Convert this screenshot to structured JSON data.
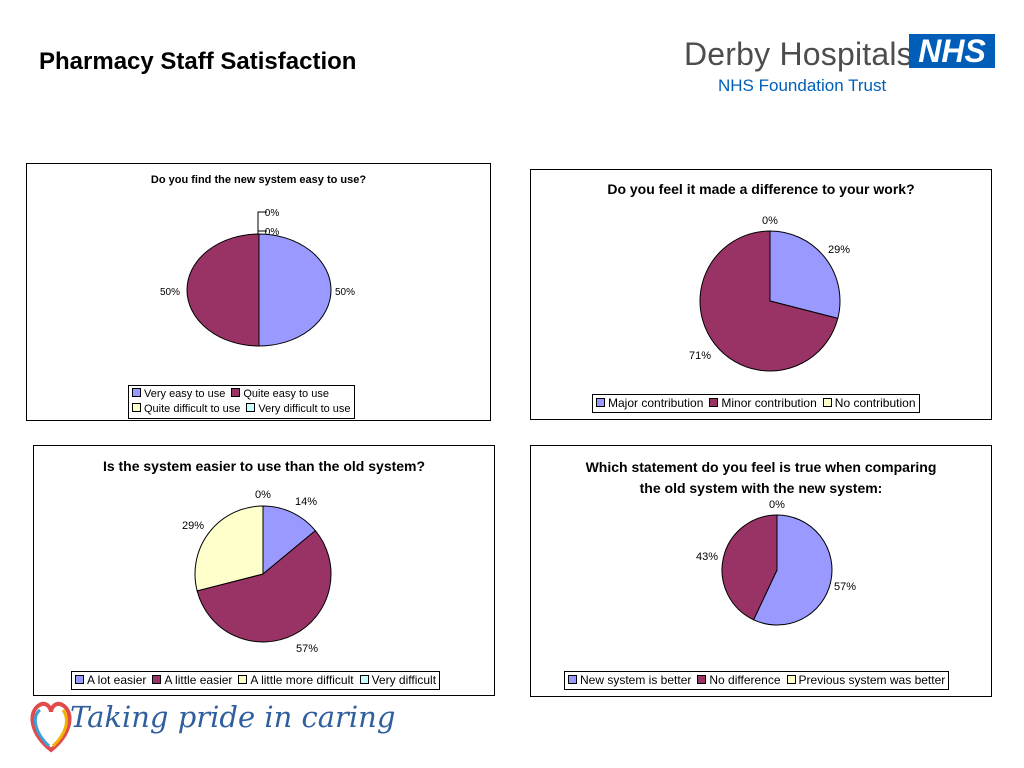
{
  "page": {
    "title": "Pharmacy Staff Satisfaction",
    "logo_org": "Derby Hospitals",
    "logo_badge": "NHS",
    "logo_sub": "NHS Foundation Trust",
    "footer_slogan": "Taking pride in caring"
  },
  "colors": {
    "slice1": "#9999ff",
    "slice2": "#993366",
    "slice3": "#ffffcc",
    "slice4": "#ccffff",
    "nhs_blue": "#005eb8"
  },
  "chart_data": [
    {
      "type": "pie",
      "title": "Do you find the new system easy to use?",
      "categories": [
        "Very easy to use",
        "Quite easy to use",
        "Quite difficult to use",
        "Very difficult to use"
      ],
      "values": [
        50,
        50,
        0,
        0
      ],
      "labels": [
        "50%",
        "50%",
        "0%",
        "0%"
      ]
    },
    {
      "type": "pie",
      "title": "Do you feel it made a difference to your work?",
      "categories": [
        "Major contribution",
        "Minor contribution",
        "No contribution"
      ],
      "values": [
        29,
        71,
        0
      ],
      "labels": [
        "29%",
        "71%",
        "0%"
      ]
    },
    {
      "type": "pie",
      "title": "Is the system easier to use than the old system?",
      "categories": [
        "A lot easier",
        "A little easier",
        "A little more difficult",
        "Very difficult"
      ],
      "values": [
        14,
        57,
        29,
        0
      ],
      "labels": [
        "14%",
        "57%",
        "29%",
        "0%"
      ]
    },
    {
      "type": "pie",
      "title": "Which statement do you feel is true when comparing the old system with the new system:",
      "categories": [
        "New system is better",
        "No difference",
        "Previous system was better"
      ],
      "values": [
        57,
        43,
        0
      ],
      "labels": [
        "57%",
        "43%",
        "0%"
      ]
    }
  ]
}
